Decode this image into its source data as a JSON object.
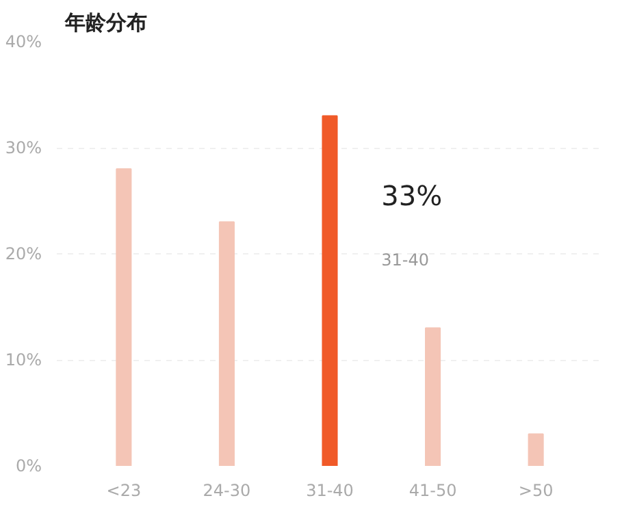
{
  "chart_data": {
    "type": "bar",
    "title": "年龄分布",
    "categories": [
      "<23",
      "24-30",
      "31-40",
      "41-50",
      ">50"
    ],
    "values": [
      28,
      23,
      33,
      13,
      3
    ],
    "colors": [
      "#f4c5b6",
      "#f4c5b6",
      "#f05a28",
      "#f4c5b6",
      "#f4c5b6"
    ],
    "ylim": [
      0,
      40
    ],
    "yticks": [
      {
        "value": 0,
        "label": "0%"
      },
      {
        "value": 10,
        "label": "10%"
      },
      {
        "value": 20,
        "label": "20%"
      },
      {
        "value": 30,
        "label": "30%"
      },
      {
        "value": 40,
        "label": "40%"
      }
    ],
    "grid": "y",
    "annotations": [
      {
        "text": "33%",
        "x": "31-40",
        "y": 33
      },
      "31-40"
    ]
  }
}
